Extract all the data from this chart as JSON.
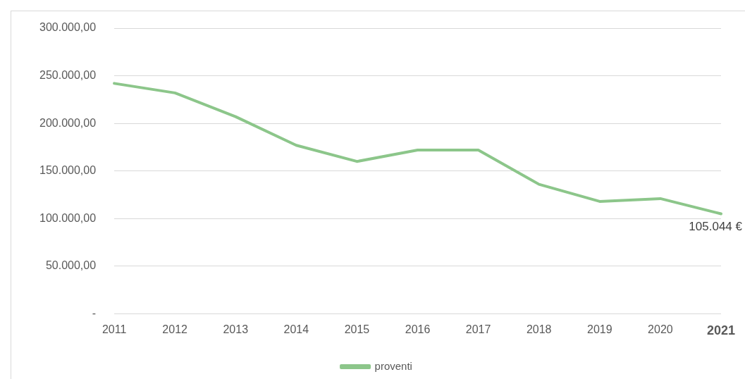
{
  "chart_data": {
    "type": "line",
    "categories": [
      "2011",
      "2012",
      "2013",
      "2014",
      "2015",
      "2016",
      "2017",
      "2018",
      "2019",
      "2020",
      "2021"
    ],
    "series": [
      {
        "name": "proventi",
        "color": "#8cc68a",
        "values": [
          242000,
          232000,
          207000,
          177000,
          160000,
          172000,
          172000,
          136000,
          118000,
          121000,
          105044
        ],
        "value_labels": [
          null,
          null,
          null,
          null,
          null,
          null,
          null,
          null,
          null,
          null,
          "105.044 €"
        ]
      }
    ],
    "ylim": [
      0,
      300000
    ],
    "yticks": [
      {
        "value": 0,
        "label": "-"
      },
      {
        "value": 50000,
        "label": "50.000,00"
      },
      {
        "value": 100000,
        "label": "100.000,00"
      },
      {
        "value": 150000,
        "label": "150.000,00"
      },
      {
        "value": 200000,
        "label": "200.000,00"
      },
      {
        "value": 250000,
        "label": "250.000,00"
      },
      {
        "value": 300000,
        "label": "300.000,00"
      }
    ],
    "grid": "y",
    "legend": "bottom",
    "marker": "none",
    "line_style": "solid"
  }
}
